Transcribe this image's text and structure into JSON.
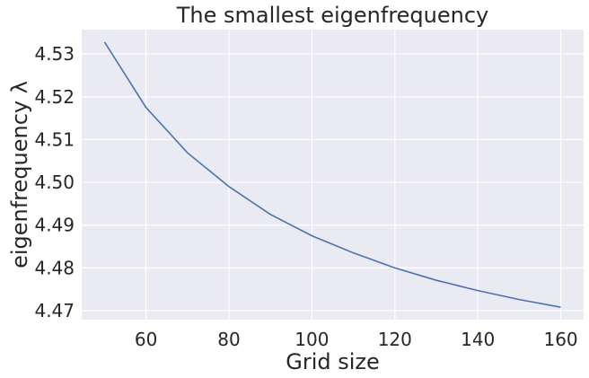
{
  "chart_data": {
    "type": "line",
    "title": "The smallest eigenfrequency",
    "xlabel": "Grid size",
    "ylabel": "eigenfrequency λ",
    "x": [
      50,
      60,
      70,
      80,
      90,
      100,
      110,
      120,
      130,
      140,
      150,
      160
    ],
    "series": [
      {
        "values": [
          4.5328,
          4.5175,
          4.5069,
          4.499,
          4.4925,
          4.4875,
          4.4835,
          4.48,
          4.4771,
          4.4747,
          4.4726,
          4.4708
        ],
        "color": "#4c72b0"
      }
    ],
    "xlim": [
      44.5,
      165.5
    ],
    "ylim": [
      4.4679,
      4.5357
    ],
    "x_ticks": [
      60,
      80,
      100,
      120,
      140,
      160
    ],
    "y_ticks": [
      4.47,
      4.48,
      4.49,
      4.5,
      4.51,
      4.52,
      4.53
    ],
    "x_tick_labels": [
      "60",
      "80",
      "100",
      "120",
      "140",
      "160"
    ],
    "y_tick_labels": [
      "4.47",
      "4.48",
      "4.49",
      "4.50",
      "4.51",
      "4.52",
      "4.53"
    ],
    "grid": true,
    "background_color": "#eaeaf2",
    "grid_color": "#ffffff"
  }
}
